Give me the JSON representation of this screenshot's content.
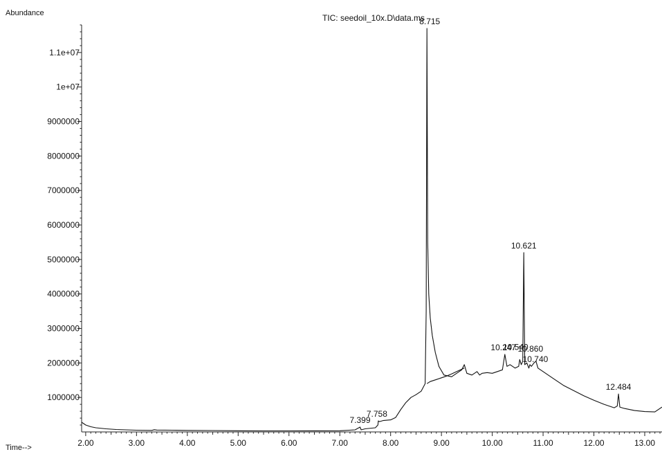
{
  "chart_data": {
    "type": "line",
    "title": "TIC: seedoil_10x.D\\data.ms",
    "ylabel": "Abundance",
    "xlabel": "Time-->",
    "xlim": [
      1.92,
      13.34
    ],
    "ylim": [
      0,
      11800000
    ],
    "x_ticks": [
      2,
      3,
      4,
      5,
      6,
      7,
      8,
      9,
      10,
      11,
      12,
      13
    ],
    "x_tick_labels": [
      "2.00",
      "3.00",
      "4.00",
      "5.00",
      "6.00",
      "7.00",
      "8.00",
      "9.00",
      "10.00",
      "11.00",
      "12.00",
      "13.00"
    ],
    "y_ticks": [
      1000000,
      2000000,
      3000000,
      4000000,
      5000000,
      6000000,
      7000000,
      8000000,
      9000000,
      10000000,
      11000000
    ],
    "y_tick_labels": [
      "1000000",
      "2000000",
      "3000000",
      "4000000",
      "5000000",
      "6000000",
      "7000000",
      "8000000",
      "9000000",
      "1e+07",
      "1.1e+07"
    ],
    "grid": false,
    "series": [
      {
        "x": [
          1.92,
          2.0,
          2.1,
          2.2,
          2.4,
          2.6,
          2.8,
          3.0,
          3.3,
          3.35,
          3.4,
          3.7,
          4.0,
          4.5,
          5.0,
          5.5,
          6.0,
          6.5,
          7.0,
          7.3,
          7.399,
          7.42,
          7.5,
          7.7,
          7.75,
          7.758,
          7.78,
          7.85,
          8.0,
          8.1,
          8.2,
          8.3,
          8.4,
          8.5,
          8.6,
          8.68,
          8.7,
          8.715,
          8.73,
          8.75,
          8.78,
          8.82,
          8.88,
          8.95,
          9.05,
          9.2,
          9.4,
          9.45,
          9.5,
          9.6,
          9.7,
          9.75,
          9.8,
          9.9,
          10.0,
          10.1,
          10.2,
          10.247,
          10.29,
          10.35,
          10.45,
          10.52,
          10.54,
          10.57,
          10.6,
          10.621,
          10.64,
          10.68,
          10.72,
          10.74,
          10.77,
          10.82,
          10.86,
          10.9,
          11.0,
          11.2,
          11.4,
          11.6,
          11.8,
          12.0,
          12.2,
          12.4,
          12.46,
          12.484,
          12.51,
          12.6,
          12.8,
          13.0,
          13.2,
          13.34
        ],
        "y": [
          280000,
          200000,
          150000,
          120000,
          90000,
          70000,
          60000,
          50000,
          45000,
          65000,
          55000,
          50000,
          45000,
          40000,
          35000,
          30000,
          30000,
          32000,
          35000,
          60000,
          140000,
          60000,
          90000,
          120000,
          200000,
          320000,
          300000,
          330000,
          350000,
          420000,
          650000,
          850000,
          1000000,
          1080000,
          1180000,
          1400000,
          3500000,
          11700000,
          5500000,
          4000000,
          3300000,
          2800000,
          2300000,
          1900000,
          1650000,
          1600000,
          1800000,
          1950000,
          1700000,
          1650000,
          1750000,
          1650000,
          1700000,
          1720000,
          1700000,
          1750000,
          1800000,
          2250000,
          1900000,
          1950000,
          1850000,
          1900000,
          2100000,
          1950000,
          2050000,
          5200000,
          1950000,
          2000000,
          1850000,
          1950000,
          1900000,
          2000000,
          2050000,
          1850000,
          1750000,
          1550000,
          1350000,
          1200000,
          1050000,
          920000,
          800000,
          700000,
          750000,
          1100000,
          720000,
          680000,
          620000,
          590000,
          580000,
          720000
        ]
      },
      {
        "x": [
          8.715,
          8.78,
          8.9,
          9.0,
          9.1,
          9.2,
          9.3,
          9.45
        ],
        "y": [
          1400000,
          1460000,
          1520000,
          1570000,
          1620000,
          1680000,
          1750000,
          1850000
        ]
      }
    ],
    "peak_labels": [
      {
        "label": "7.399",
        "x": 7.399,
        "y": 140000
      },
      {
        "label": "7.758",
        "x": 7.758,
        "y": 320000
      },
      {
        "label": "8.715",
        "x": 8.715,
        "y": 11700000
      },
      {
        "label": "10.247",
        "x": 10.247,
        "y": 2250000
      },
      {
        "label": "10.540",
        "x": 10.54,
        "y": 2100000
      },
      {
        "label": "10.621",
        "x": 10.621,
        "y": 5200000
      },
      {
        "label": "10.740",
        "x": 10.74,
        "y": 1950000
      },
      {
        "label": "10.860",
        "x": 10.86,
        "y": 2050000
      },
      {
        "label": "12.484",
        "x": 12.484,
        "y": 1100000
      }
    ]
  }
}
